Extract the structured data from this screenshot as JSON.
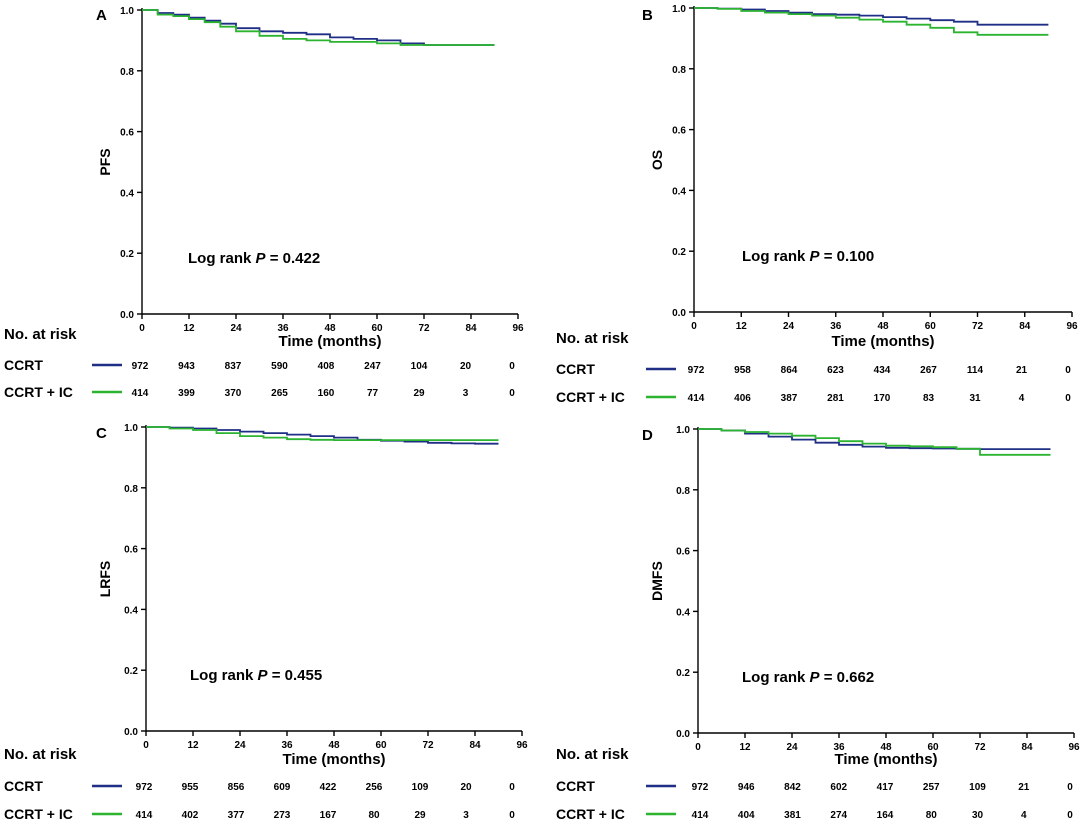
{
  "colors": {
    "ccrt": "#1f2f86",
    "ccrt_ic": "#2cb431"
  },
  "chart_data": [
    {
      "type": "line",
      "panel": "A",
      "ylabel": "PFS",
      "xlabel": "Time (months)",
      "xlim": [
        0,
        96
      ],
      "ylim": [
        0,
        1
      ],
      "xticks": [
        "0",
        "12",
        "24",
        "36",
        "48",
        "60",
        "72",
        "84",
        "96"
      ],
      "yticks": [
        "0.0",
        "0.2",
        "0.4",
        "0.6",
        "0.8",
        "1.0"
      ],
      "log_rank_prefix": "Log rank ",
      "log_rank_p": "P",
      "log_rank_value": " = 0.422",
      "series": [
        {
          "name": "CCRT",
          "x": [
            0,
            4,
            8,
            12,
            16,
            20,
            24,
            30,
            36,
            42,
            48,
            54,
            60,
            66,
            72,
            78,
            84,
            90
          ],
          "y": [
            1.0,
            0.99,
            0.985,
            0.975,
            0.965,
            0.955,
            0.94,
            0.93,
            0.925,
            0.92,
            0.91,
            0.905,
            0.9,
            0.89,
            0.885,
            0.885,
            0.885,
            0.885
          ]
        },
        {
          "name": "CCRT + IC",
          "x": [
            0,
            4,
            8,
            12,
            16,
            20,
            24,
            30,
            36,
            42,
            48,
            54,
            60,
            66,
            72,
            78,
            84,
            90
          ],
          "y": [
            1.0,
            0.985,
            0.98,
            0.97,
            0.96,
            0.945,
            0.93,
            0.915,
            0.905,
            0.9,
            0.895,
            0.895,
            0.89,
            0.885,
            0.885,
            0.885,
            0.885,
            0.885
          ]
        }
      ],
      "risk_table": {
        "title": "No. at risk",
        "rows": [
          {
            "label": "CCRT",
            "values": [
              "972",
              "943",
              "837",
              "590",
              "408",
              "247",
              "104",
              "20",
              "0"
            ]
          },
          {
            "label": "CCRT + IC",
            "values": [
              "414",
              "399",
              "370",
              "265",
              "160",
              "77",
              "29",
              "3",
              "0"
            ]
          }
        ]
      }
    },
    {
      "type": "line",
      "panel": "B",
      "ylabel": "OS",
      "xlabel": "Time (months)",
      "xlim": [
        0,
        96
      ],
      "ylim": [
        0,
        1
      ],
      "xticks": [
        "0",
        "12",
        "24",
        "36",
        "48",
        "60",
        "72",
        "84",
        "96"
      ],
      "yticks": [
        "0.0",
        "0.2",
        "0.4",
        "0.6",
        "0.8",
        "1.0"
      ],
      "log_rank_prefix": "Log rank ",
      "log_rank_p": "P",
      "log_rank_value": " = 0.100",
      "series": [
        {
          "name": "CCRT",
          "x": [
            0,
            6,
            12,
            18,
            24,
            30,
            36,
            42,
            48,
            54,
            60,
            66,
            72,
            78,
            84,
            90
          ],
          "y": [
            1.0,
            0.998,
            0.995,
            0.99,
            0.985,
            0.98,
            0.978,
            0.975,
            0.97,
            0.965,
            0.96,
            0.955,
            0.945,
            0.945,
            0.945,
            0.945
          ]
        },
        {
          "name": "CCRT + IC",
          "x": [
            0,
            6,
            12,
            18,
            24,
            30,
            36,
            42,
            48,
            54,
            60,
            66,
            72,
            78,
            84,
            90
          ],
          "y": [
            1.0,
            0.997,
            0.99,
            0.985,
            0.98,
            0.975,
            0.968,
            0.962,
            0.955,
            0.945,
            0.935,
            0.92,
            0.912,
            0.912,
            0.912,
            0.912
          ]
        }
      ],
      "risk_table": {
        "title": "No. at risk",
        "rows": [
          {
            "label": "CCRT",
            "values": [
              "972",
              "958",
              "864",
              "623",
              "434",
              "267",
              "114",
              "21",
              "0"
            ]
          },
          {
            "label": "CCRT + IC",
            "values": [
              "414",
              "406",
              "387",
              "281",
              "170",
              "83",
              "31",
              "4",
              "0"
            ]
          }
        ]
      }
    },
    {
      "type": "line",
      "panel": "C",
      "ylabel": "LRFS",
      "xlabel": "Time (months)",
      "xlim": [
        0,
        96
      ],
      "ylim": [
        0,
        1
      ],
      "xticks": [
        "0",
        "12",
        "24",
        "36",
        "48",
        "60",
        "72",
        "84",
        "96"
      ],
      "yticks": [
        "0.0",
        "0.2",
        "0.4",
        "0.6",
        "0.8",
        "1.0"
      ],
      "log_rank_prefix": "Log rank ",
      "log_rank_p": "P",
      "log_rank_value": " = 0.455",
      "series": [
        {
          "name": "CCRT",
          "x": [
            0,
            6,
            12,
            18,
            24,
            30,
            36,
            42,
            48,
            54,
            60,
            66,
            72,
            78,
            84,
            90
          ],
          "y": [
            1.0,
            0.998,
            0.995,
            0.99,
            0.985,
            0.98,
            0.975,
            0.97,
            0.965,
            0.958,
            0.955,
            0.952,
            0.948,
            0.946,
            0.945,
            0.945
          ]
        },
        {
          "name": "CCRT + IC",
          "x": [
            0,
            6,
            12,
            18,
            24,
            30,
            36,
            42,
            48,
            54,
            60,
            66,
            72,
            78,
            84,
            90
          ],
          "y": [
            1.0,
            0.995,
            0.99,
            0.98,
            0.97,
            0.965,
            0.96,
            0.958,
            0.957,
            0.957,
            0.957,
            0.957,
            0.957,
            0.957,
            0.957,
            0.957
          ]
        }
      ],
      "risk_table": {
        "title": "No. at risk",
        "rows": [
          {
            "label": "CCRT",
            "values": [
              "972",
              "955",
              "856",
              "609",
              "422",
              "256",
              "109",
              "20",
              "0"
            ]
          },
          {
            "label": "CCRT + IC",
            "values": [
              "414",
              "402",
              "377",
              "273",
              "167",
              "80",
              "29",
              "3",
              "0"
            ]
          }
        ]
      }
    },
    {
      "type": "line",
      "panel": "D",
      "ylabel": "DMFS",
      "xlabel": "Time (months)",
      "xlim": [
        0,
        96
      ],
      "ylim": [
        0,
        1
      ],
      "xticks": [
        "0",
        "12",
        "24",
        "36",
        "48",
        "60",
        "72",
        "84",
        "96"
      ],
      "yticks": [
        "0.0",
        "0.2",
        "0.4",
        "0.6",
        "0.8",
        "1.0"
      ],
      "log_rank_prefix": "Log rank ",
      "log_rank_p": "P",
      "log_rank_value": " = 0.662",
      "series": [
        {
          "name": "CCRT",
          "x": [
            0,
            6,
            12,
            18,
            24,
            30,
            36,
            42,
            48,
            54,
            60,
            66,
            72,
            78,
            84,
            90
          ],
          "y": [
            1.0,
            0.995,
            0.985,
            0.975,
            0.965,
            0.955,
            0.948,
            0.942,
            0.938,
            0.937,
            0.936,
            0.935,
            0.934,
            0.934,
            0.934,
            0.934
          ]
        },
        {
          "name": "CCRT + IC",
          "x": [
            0,
            6,
            12,
            18,
            24,
            30,
            36,
            42,
            48,
            54,
            60,
            66,
            72,
            78,
            84,
            90
          ],
          "y": [
            1.0,
            0.995,
            0.99,
            0.985,
            0.978,
            0.97,
            0.96,
            0.952,
            0.945,
            0.943,
            0.94,
            0.935,
            0.915,
            0.915,
            0.915,
            0.915
          ]
        }
      ],
      "risk_table": {
        "title": "No. at risk",
        "rows": [
          {
            "label": "CCRT",
            "values": [
              "972",
              "946",
              "842",
              "602",
              "417",
              "257",
              "109",
              "21",
              "0"
            ]
          },
          {
            "label": "CCRT + IC",
            "values": [
              "414",
              "404",
              "381",
              "274",
              "164",
              "80",
              "30",
              "4",
              "0"
            ]
          }
        ]
      }
    }
  ]
}
